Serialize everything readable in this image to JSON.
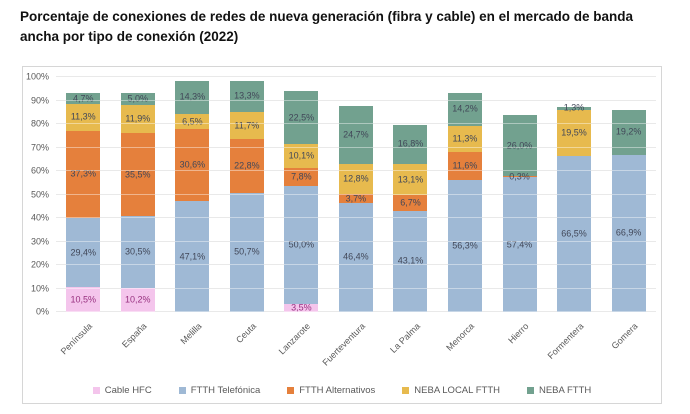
{
  "title": "Porcentaje de conexiones de redes de nueva generación (fibra y cable) en el mercado de banda ancha por tipo de conexión (2022)",
  "colors": {
    "axis_text": "#595959",
    "gridline": "#d9d9d9",
    "container_border": "#d6d6d6",
    "default_label": "#414758"
  },
  "chart_data": {
    "type": "bar",
    "subtype": "stacked-vertical-percent",
    "title": "Porcentaje de conexiones de redes de nueva generación (fibra y cable) en el mercado de banda ancha por tipo de conexión (2022)",
    "categories": [
      "Península",
      "España",
      "Melilla",
      "Ceuta",
      "Lanzarote",
      "Fuerteventura",
      "La Palma",
      "Menorca",
      "Hierro",
      "Formentera",
      "Gomera"
    ],
    "series": [
      {
        "name": "Cable HFC",
        "color": "#f4c5ec",
        "label_color": "#97307f",
        "values": [
          10.5,
          10.2,
          null,
          null,
          3.5,
          null,
          null,
          null,
          null,
          null,
          null
        ]
      },
      {
        "name": "FTTH Telefónica",
        "color": "#9fb9d5",
        "label_color": "#414758",
        "values": [
          29.4,
          30.5,
          47.1,
          50.7,
          50.0,
          46.4,
          43.1,
          56.3,
          57.4,
          66.5,
          66.9
        ]
      },
      {
        "name": "FTTH Alternativos",
        "color": "#e5803c",
        "label_color": "#414758",
        "values": [
          37.3,
          35.5,
          30.6,
          22.8,
          7.8,
          3.7,
          6.7,
          11.6,
          0.3,
          null,
          null
        ]
      },
      {
        "name": "NEBA LOCAL FTTH",
        "color": "#e7ba4e",
        "label_color": "#414758",
        "values": [
          11.3,
          11.9,
          6.5,
          11.7,
          10.1,
          12.8,
          13.1,
          11.3,
          null,
          19.5,
          null
        ]
      },
      {
        "name": "NEBA FTTH",
        "color": "#72a18f",
        "label_color": "#414758",
        "values": [
          4.7,
          5.0,
          14.3,
          13.3,
          22.5,
          24.7,
          16.8,
          14.2,
          26.0,
          1.3,
          19.2
        ]
      }
    ],
    "y_ticks": [
      "0%",
      "10%",
      "20%",
      "30%",
      "40%",
      "50%",
      "60%",
      "70%",
      "80%",
      "90%",
      "100%"
    ],
    "ylim": [
      0,
      100
    ],
    "xlabel": "",
    "ylabel": "",
    "grid": true,
    "legend_position": "bottom",
    "value_format": "one decimal, comma decimal separator, percent suffix"
  }
}
